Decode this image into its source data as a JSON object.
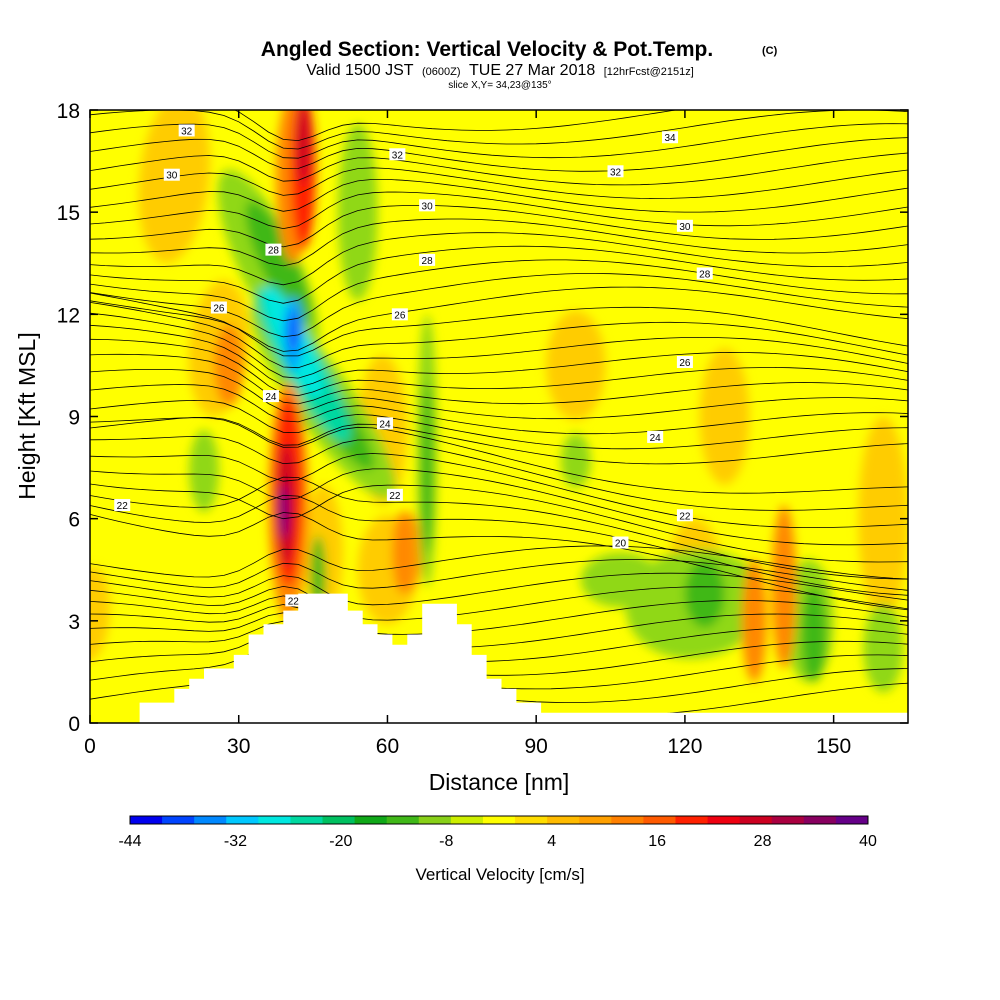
{
  "header": {
    "title": "Angled Section: Vertical Velocity & Pot.Temp.",
    "title_units": "(C)",
    "valid_prefix": "Valid 1500 JST",
    "valid_utc": "(0600Z)",
    "valid_date": "TUE 27 Mar 2018",
    "forecast": "[12hrFcst@2151z]",
    "slice": "slice X,Y= 34,23@135°"
  },
  "chart_data": {
    "type": "heatmap",
    "xlabel": "Distance [nm]",
    "ylabel": "Height [Kft MSL]",
    "xlim": [
      0,
      165
    ],
    "ylim": [
      0,
      18
    ],
    "x_ticks": [
      "0",
      "30",
      "60",
      "90",
      "120",
      "150"
    ],
    "y_ticks": [
      "0",
      "3",
      "6",
      "9",
      "12",
      "15",
      "18"
    ],
    "x_tick_values": [
      0,
      30,
      60,
      90,
      120,
      150
    ],
    "y_tick_values": [
      0,
      3,
      6,
      9,
      12,
      15,
      18
    ],
    "colorbar": {
      "label": "Vertical Velocity [cm/s]",
      "tick_labels": [
        "-44",
        "-32",
        "-20",
        "-8",
        "4",
        "16",
        "28",
        "40"
      ],
      "tick_values": [
        -44,
        -32,
        -20,
        -8,
        4,
        16,
        28,
        40
      ],
      "range": [
        -44,
        40
      ],
      "colors": [
        "#0000ee",
        "#0044ff",
        "#0088ff",
        "#00c8ff",
        "#00e8e0",
        "#00d8a0",
        "#00c060",
        "#10a818",
        "#40b818",
        "#88d018",
        "#ccee00",
        "#ffff00",
        "#ffdd00",
        "#ffbb00",
        "#ffa000",
        "#ff8000",
        "#ff5a00",
        "#ff2000",
        "#ee0010",
        "#cc0020",
        "#aa0040",
        "#880060",
        "#660088"
      ]
    },
    "contour_labels": [
      {
        "text": "32",
        "x": 19.5,
        "y": 17.4
      },
      {
        "text": "30",
        "x": 16.5,
        "y": 16.1
      },
      {
        "text": "32",
        "x": 62,
        "y": 16.7
      },
      {
        "text": "34",
        "x": 117,
        "y": 17.2
      },
      {
        "text": "32",
        "x": 106,
        "y": 16.2
      },
      {
        "text": "30",
        "x": 68,
        "y": 15.2
      },
      {
        "text": "30",
        "x": 120,
        "y": 14.6
      },
      {
        "text": "28",
        "x": 37,
        "y": 13.9
      },
      {
        "text": "28",
        "x": 68,
        "y": 13.6
      },
      {
        "text": "28",
        "x": 124,
        "y": 13.2
      },
      {
        "text": "26",
        "x": 26,
        "y": 12.2
      },
      {
        "text": "26",
        "x": 62.5,
        "y": 12.0
      },
      {
        "text": "26",
        "x": 120,
        "y": 10.6
      },
      {
        "text": "24",
        "x": 36.5,
        "y": 9.6
      },
      {
        "text": "24",
        "x": 59.5,
        "y": 8.8
      },
      {
        "text": "24",
        "x": 114,
        "y": 8.4
      },
      {
        "text": "22",
        "x": 6.5,
        "y": 6.4
      },
      {
        "text": "22",
        "x": 61.5,
        "y": 6.7
      },
      {
        "text": "22",
        "x": 120,
        "y": 6.1
      },
      {
        "text": "20",
        "x": 107,
        "y": 5.3
      },
      {
        "text": "22",
        "x": 41,
        "y": 3.6
      }
    ],
    "terrain_profile": [
      [
        0,
        0
      ],
      [
        10,
        0
      ],
      [
        10,
        0.6
      ],
      [
        17,
        0.6
      ],
      [
        17,
        1.0
      ],
      [
        20,
        1.0
      ],
      [
        20,
        1.3
      ],
      [
        23,
        1.3
      ],
      [
        23,
        1.6
      ],
      [
        29,
        1.6
      ],
      [
        29,
        2.0
      ],
      [
        32,
        2.0
      ],
      [
        32,
        2.6
      ],
      [
        35,
        2.6
      ],
      [
        35,
        2.9
      ],
      [
        39,
        2.9
      ],
      [
        39,
        3.3
      ],
      [
        42,
        3.3
      ],
      [
        42,
        3.8
      ],
      [
        52,
        3.8
      ],
      [
        52,
        3.3
      ],
      [
        55,
        3.3
      ],
      [
        55,
        2.9
      ],
      [
        58,
        2.9
      ],
      [
        58,
        2.6
      ],
      [
        61,
        2.6
      ],
      [
        61,
        2.3
      ],
      [
        64,
        2.3
      ],
      [
        64,
        2.6
      ],
      [
        67,
        2.6
      ],
      [
        67,
        3.5
      ],
      [
        74,
        3.5
      ],
      [
        74,
        2.9
      ],
      [
        77,
        2.9
      ],
      [
        77,
        2.0
      ],
      [
        80,
        2.0
      ],
      [
        80,
        1.3
      ],
      [
        83,
        1.3
      ],
      [
        83,
        1.0
      ],
      [
        86,
        1.0
      ],
      [
        86,
        0.6
      ],
      [
        91,
        0.6
      ],
      [
        91,
        0.3
      ],
      [
        165,
        0.3
      ],
      [
        165,
        0
      ]
    ]
  }
}
